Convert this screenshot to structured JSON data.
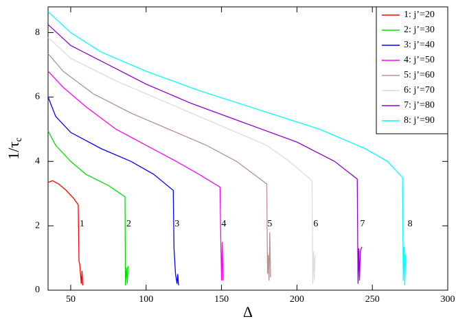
{
  "chart_data": {
    "type": "line",
    "x_label": "Δ",
    "y_label": "1/τ",
    "y_label_sub": "c",
    "xlim": [
      35,
      300
    ],
    "xticks": [
      50,
      100,
      150,
      200,
      250,
      300
    ],
    "ylim": [
      0,
      8.8
    ],
    "yticks": [
      0,
      2,
      4,
      6,
      8
    ],
    "legend_position": "upper right",
    "series": [
      {
        "name": "1: j’=20",
        "color": "#ff0000",
        "x": [
          35,
          38,
          42,
          47,
          52,
          55,
          55.5,
          56,
          56.5,
          57,
          57.5,
          58
        ],
        "values": [
          3.35,
          3.4,
          3.3,
          3.1,
          2.85,
          2.65,
          0.9,
          0.8,
          0.5,
          0.2,
          0.6,
          0.15
        ]
      },
      {
        "name": "2: j’=30",
        "color": "#00e000",
        "x": [
          35,
          40,
          50,
          60,
          75,
          86,
          86.3,
          87,
          87.5,
          88
        ],
        "values": [
          4.95,
          4.5,
          4.0,
          3.6,
          3.25,
          2.9,
          0.15,
          0.7,
          0.2,
          0.75
        ]
      },
      {
        "name": "3: j’=40",
        "color": "#0000ff",
        "x": [
          35,
          40,
          50,
          70,
          90,
          105,
          118,
          118.5,
          119.5,
          120.5,
          121,
          121.5
        ],
        "values": [
          6.0,
          5.4,
          4.9,
          4.4,
          4.0,
          3.6,
          3.1,
          1.3,
          0.5,
          0.2,
          0.5,
          0.15
        ]
      },
      {
        "name": "4: j’=50",
        "color": "#ff00ff",
        "x": [
          35,
          45,
          60,
          80,
          100,
          120,
          135,
          149,
          149.5,
          150,
          150.5,
          151
        ],
        "values": [
          6.8,
          6.3,
          5.7,
          5.0,
          4.5,
          4.0,
          3.6,
          3.2,
          1.6,
          0.3,
          1.5,
          0.3
        ]
      },
      {
        "name": "5: j’=60",
        "color": "#bc8f8f",
        "x": [
          35,
          45,
          65,
          90,
          115,
          140,
          160,
          180,
          180.5,
          181,
          181.5,
          182,
          182.5
        ],
        "values": [
          7.35,
          6.8,
          6.1,
          5.5,
          5.0,
          4.5,
          4.0,
          3.3,
          0.5,
          1.1,
          0.3,
          1.8,
          0.4
        ]
      },
      {
        "name": "6: j’=70",
        "color": "#dcdcdc",
        "x": [
          35,
          50,
          80,
          105,
          130,
          155,
          180,
          195,
          210,
          210.5,
          211,
          211.5,
          212
        ],
        "values": [
          7.85,
          7.2,
          6.5,
          6.0,
          5.5,
          5.0,
          4.5,
          4.0,
          3.4,
          0.2,
          1.2,
          0.3,
          1.1
        ]
      },
      {
        "name": "7: j’=80",
        "color": "#9400d3",
        "x": [
          35,
          50,
          75,
          100,
          130,
          165,
          200,
          225,
          240,
          240.5,
          241,
          241.5,
          242,
          243
        ],
        "values": [
          8.25,
          7.6,
          7.0,
          6.4,
          5.8,
          5.2,
          4.6,
          4.0,
          3.45,
          0.2,
          1.3,
          0.3,
          1.2,
          1.35
        ]
      },
      {
        "name": "8: j’=90",
        "color": "#00ffff",
        "x": [
          35,
          50,
          70,
          100,
          135,
          175,
          215,
          245,
          260,
          270,
          270.5,
          271,
          271.5,
          272
        ],
        "values": [
          8.65,
          8.0,
          7.4,
          6.8,
          6.2,
          5.6,
          5.0,
          4.4,
          4.0,
          3.5,
          0.3,
          1.35,
          0.15,
          1.1
        ]
      }
    ],
    "annotations": [
      {
        "text": "1",
        "x": 57.5,
        "y": 2.05
      },
      {
        "text": "2",
        "x": 88.5,
        "y": 2.05
      },
      {
        "text": "3",
        "x": 120.5,
        "y": 2.05
      },
      {
        "text": "4",
        "x": 151.5,
        "y": 2.05
      },
      {
        "text": "5",
        "x": 182,
        "y": 2.05
      },
      {
        "text": "6",
        "x": 212.5,
        "y": 2.05
      },
      {
        "text": "7",
        "x": 243.5,
        "y": 2.05
      },
      {
        "text": "8",
        "x": 275,
        "y": 2.05
      }
    ]
  }
}
